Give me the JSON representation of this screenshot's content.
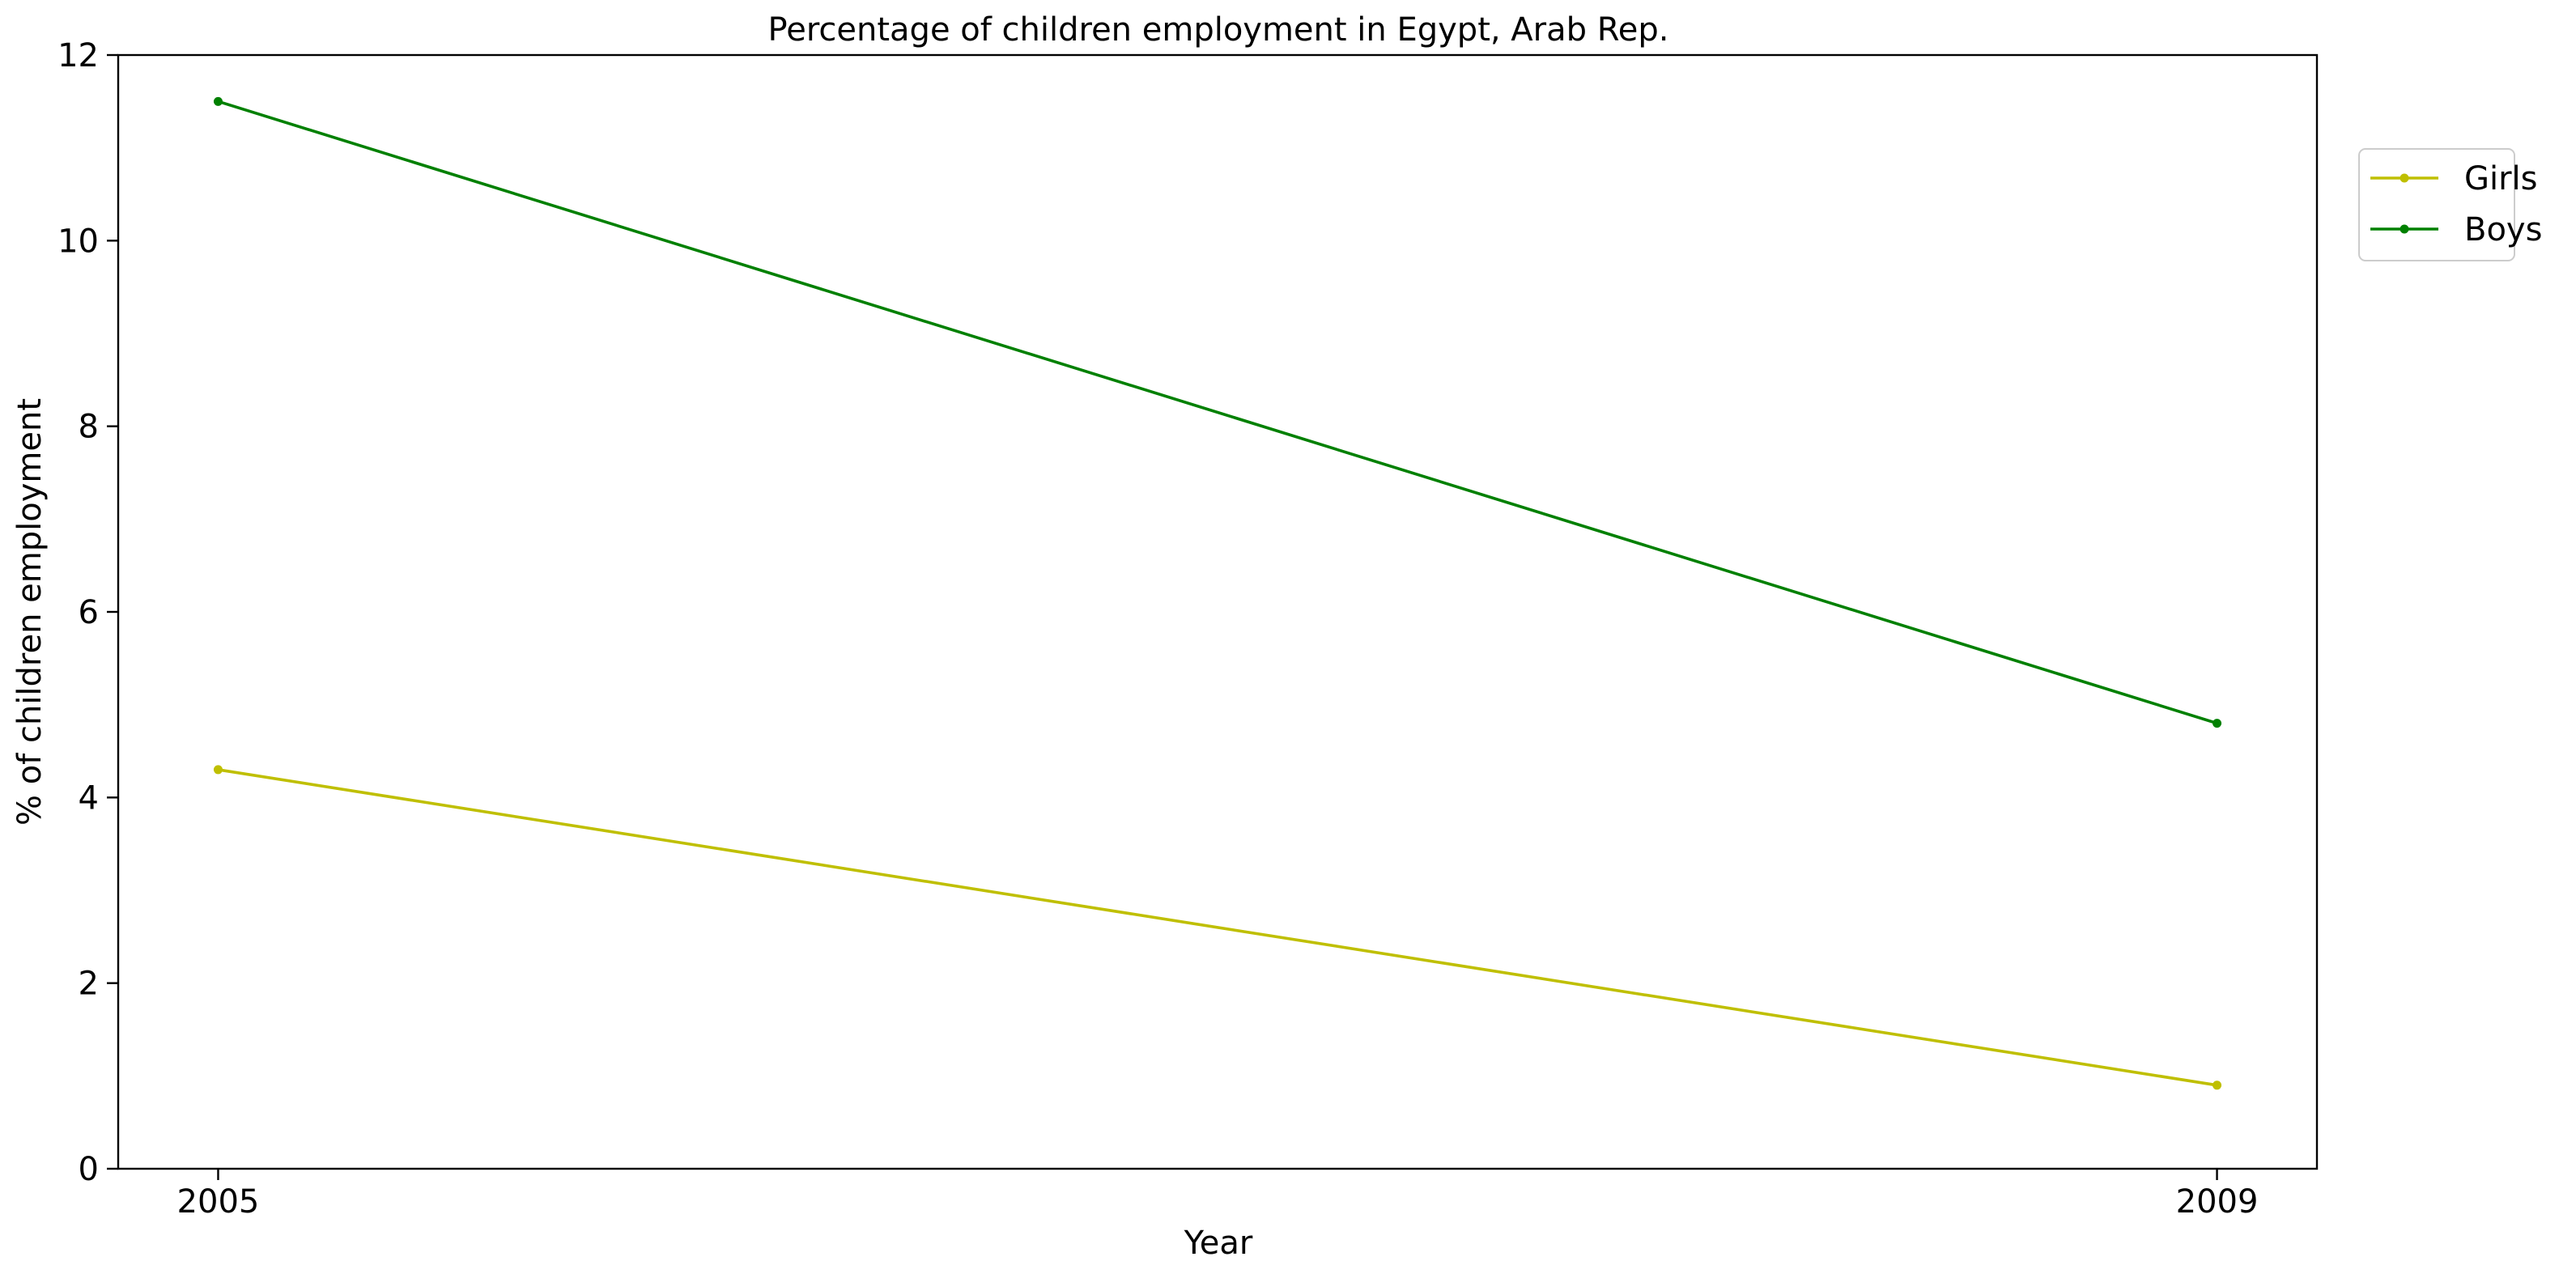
{
  "chart_data": {
    "type": "line",
    "title": "Percentage of children employment in Egypt, Arab Rep.",
    "xlabel": "Year",
    "ylabel": "% of children employment",
    "x": [
      2005,
      2009
    ],
    "x_tick_labels": [
      "2005",
      "2009"
    ],
    "xlim": [
      2004.8,
      2009.2
    ],
    "ylim": [
      0,
      12
    ],
    "y_ticks": [
      0,
      2,
      4,
      6,
      8,
      10,
      12
    ],
    "y_tick_labels": [
      "0",
      "2",
      "4",
      "6",
      "8",
      "10",
      "12"
    ],
    "grid": false,
    "legend_placement": "upper-right-outside",
    "series": [
      {
        "name": "Girls",
        "color": "#bfbf00",
        "values": [
          4.3,
          0.9
        ]
      },
      {
        "name": "Boys",
        "color": "#008000",
        "values": [
          11.5,
          4.8
        ]
      }
    ]
  }
}
